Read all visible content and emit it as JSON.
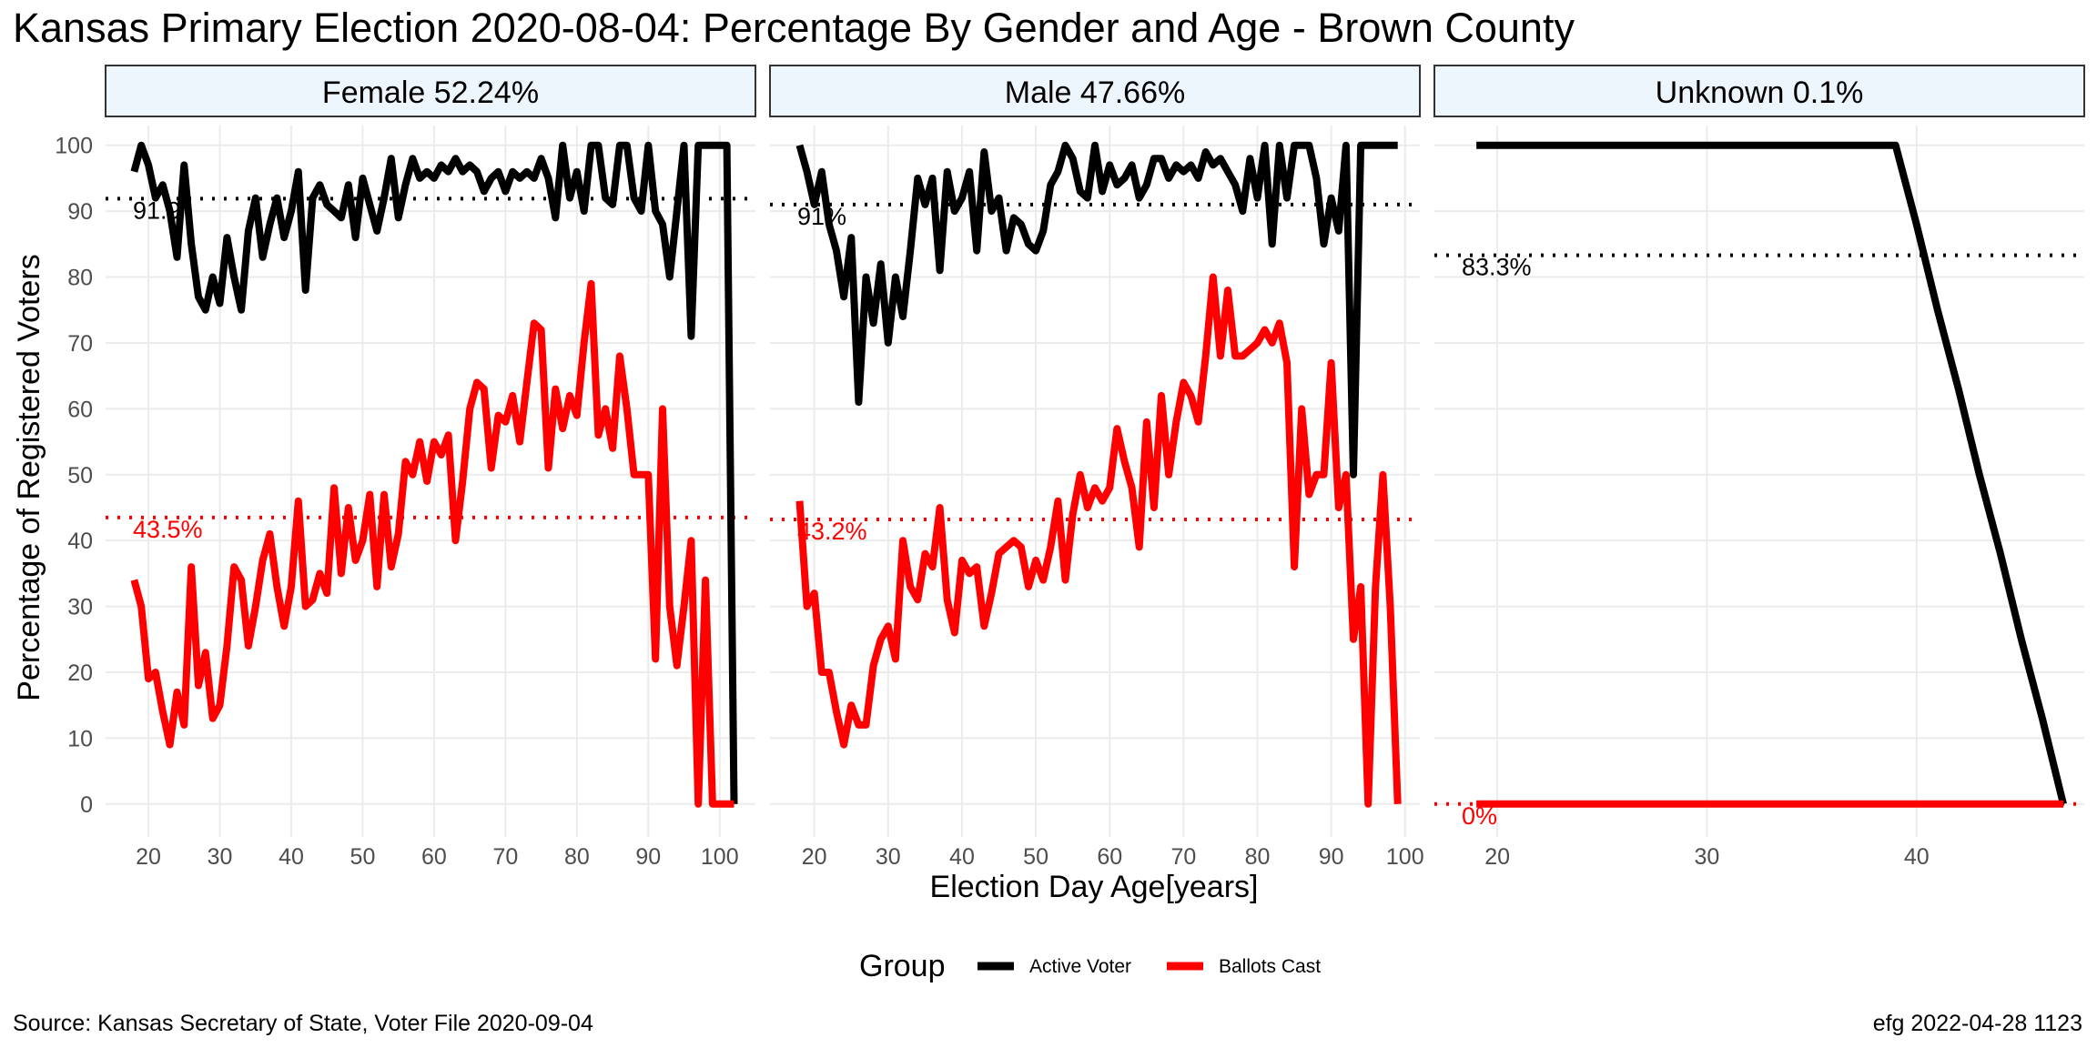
{
  "title": "Kansas Primary Election 2020-08-04:  Percentage By Gender and Age - Brown County",
  "ylabel": "Percentage of Registered Voters",
  "xlabel": "Election Day Age[years]",
  "caption_left": "Source:  Kansas Secretary of State, Voter File  2020-09-04",
  "caption_right": "efg 2022-04-28 1123",
  "legend": {
    "title": "Group",
    "items": [
      {
        "label": "Active Voter",
        "color": "#000000"
      },
      {
        "label": "Ballots Cast",
        "color": "#ff0000"
      }
    ]
  },
  "colors": {
    "active": "#000000",
    "ballots": "#ff0000",
    "strip_fill": "#eef6fd",
    "grid": "#ebebeb"
  },
  "chart_data": [
    {
      "type": "line",
      "facet": "Female 52.24%",
      "xlim": [
        14,
        105
      ],
      "ylim": [
        -5,
        103
      ],
      "x_ticks": [
        20,
        30,
        40,
        50,
        60,
        70,
        80,
        90,
        100
      ],
      "y_ticks": [
        0,
        10,
        20,
        30,
        40,
        50,
        60,
        70,
        80,
        90,
        100
      ],
      "series": [
        {
          "name": "Active Voter",
          "color": "#000000",
          "x": [
            18,
            19,
            20,
            21,
            22,
            23,
            24,
            25,
            26,
            27,
            28,
            29,
            30,
            31,
            32,
            33,
            34,
            35,
            36,
            37,
            38,
            39,
            40,
            41,
            42,
            43,
            44,
            45,
            46,
            47,
            48,
            49,
            50,
            51,
            52,
            53,
            54,
            55,
            56,
            57,
            58,
            59,
            60,
            61,
            62,
            63,
            64,
            65,
            66,
            67,
            68,
            69,
            70,
            71,
            72,
            73,
            74,
            75,
            76,
            77,
            78,
            79,
            80,
            81,
            82,
            83,
            84,
            85,
            86,
            87,
            88,
            89,
            90,
            91,
            92,
            93,
            94,
            95,
            96,
            97,
            98,
            99,
            100,
            101,
            102
          ],
          "y": [
            96,
            100,
            97,
            92,
            94,
            90,
            83,
            97,
            85,
            77,
            75,
            80,
            76,
            86,
            80,
            75,
            87,
            92,
            83,
            88,
            92,
            86,
            90,
            96,
            78,
            92,
            94,
            91,
            90,
            89,
            94,
            86,
            95,
            91,
            87,
            92,
            98,
            89,
            94,
            98,
            95,
            96,
            95,
            97,
            96,
            98,
            96,
            97,
            96,
            93,
            95,
            96,
            93,
            96,
            95,
            96,
            95,
            98,
            95,
            89,
            100,
            92,
            96,
            90,
            100,
            100,
            92,
            91,
            100,
            100,
            92,
            90,
            100,
            90,
            88,
            80,
            90,
            100,
            71,
            100,
            100,
            100,
            100,
            100,
            0
          ]
        },
        {
          "name": "Ballots Cast",
          "color": "#ff0000",
          "x": [
            18,
            19,
            20,
            21,
            22,
            23,
            24,
            25,
            26,
            27,
            28,
            29,
            30,
            31,
            32,
            33,
            34,
            35,
            36,
            37,
            38,
            39,
            40,
            41,
            42,
            43,
            44,
            45,
            46,
            47,
            48,
            49,
            50,
            51,
            52,
            53,
            54,
            55,
            56,
            57,
            58,
            59,
            60,
            61,
            62,
            63,
            64,
            65,
            66,
            67,
            68,
            69,
            70,
            71,
            72,
            73,
            74,
            75,
            76,
            77,
            78,
            79,
            80,
            81,
            82,
            83,
            84,
            85,
            86,
            87,
            88,
            89,
            90,
            91,
            92,
            93,
            94,
            95,
            96,
            97,
            98,
            99,
            100,
            101,
            102
          ],
          "y": [
            34,
            30,
            19,
            20,
            14,
            9,
            17,
            12,
            36,
            18,
            23,
            13,
            15,
            24,
            36,
            34,
            24,
            30,
            37,
            41,
            33,
            27,
            33,
            46,
            30,
            31,
            35,
            32,
            48,
            35,
            45,
            37,
            40,
            47,
            33,
            47,
            36,
            41,
            52,
            50,
            55,
            49,
            55,
            53,
            56,
            40,
            49,
            60,
            64,
            63,
            51,
            59,
            58,
            62,
            55,
            64,
            73,
            72,
            51,
            63,
            57,
            62,
            59,
            70,
            79,
            56,
            60,
            54,
            68,
            60,
            50,
            50,
            50,
            22,
            60,
            30,
            21,
            30,
            40,
            0,
            34,
            0,
            0,
            0,
            0
          ]
        }
      ],
      "reference": {
        "active": 91.9,
        "active_label": "91.9",
        "ballots": 43.5,
        "ballots_label": "43.5%"
      }
    },
    {
      "type": "line",
      "facet": "Male 47.66%",
      "xlim": [
        14,
        102
      ],
      "ylim": [
        -5,
        103
      ],
      "x_ticks": [
        20,
        30,
        40,
        50,
        60,
        70,
        80,
        90,
        100
      ],
      "y_ticks": [
        0,
        10,
        20,
        30,
        40,
        50,
        60,
        70,
        80,
        90,
        100
      ],
      "series": [
        {
          "name": "Active Voter",
          "color": "#000000",
          "x": [
            18,
            19,
            20,
            21,
            22,
            23,
            24,
            25,
            26,
            27,
            28,
            29,
            30,
            31,
            32,
            33,
            34,
            35,
            36,
            37,
            38,
            39,
            40,
            41,
            42,
            43,
            44,
            45,
            46,
            47,
            48,
            49,
            50,
            51,
            52,
            53,
            54,
            55,
            56,
            57,
            58,
            59,
            60,
            61,
            62,
            63,
            64,
            65,
            66,
            67,
            68,
            69,
            70,
            71,
            72,
            73,
            74,
            75,
            76,
            77,
            78,
            79,
            80,
            81,
            82,
            83,
            84,
            85,
            86,
            87,
            88,
            89,
            90,
            91,
            92,
            93,
            94,
            95,
            96,
            97,
            98,
            99
          ],
          "y": [
            100,
            96,
            91,
            96,
            88,
            84,
            77,
            86,
            61,
            80,
            73,
            82,
            70,
            80,
            74,
            84,
            95,
            91,
            95,
            81,
            96,
            90,
            92,
            96,
            84,
            99,
            90,
            92,
            84,
            89,
            88,
            85,
            84,
            87,
            94,
            96,
            100,
            98,
            93,
            92,
            100,
            93,
            97,
            94,
            95,
            97,
            92,
            94,
            98,
            98,
            95,
            97,
            96,
            97,
            95,
            99,
            97,
            98,
            96,
            94,
            90,
            98,
            92,
            100,
            85,
            100,
            92,
            100,
            100,
            100,
            95,
            85,
            92,
            87,
            100,
            50,
            100,
            100,
            100,
            100,
            100,
            100
          ]
        },
        {
          "name": "Ballots Cast",
          "color": "#ff0000",
          "x": [
            18,
            19,
            20,
            21,
            22,
            23,
            24,
            25,
            26,
            27,
            28,
            29,
            30,
            31,
            32,
            33,
            34,
            35,
            36,
            37,
            38,
            39,
            40,
            41,
            42,
            43,
            44,
            45,
            46,
            47,
            48,
            49,
            50,
            51,
            52,
            53,
            54,
            55,
            56,
            57,
            58,
            59,
            60,
            61,
            62,
            63,
            64,
            65,
            66,
            67,
            68,
            69,
            70,
            71,
            72,
            73,
            74,
            75,
            76,
            77,
            78,
            79,
            80,
            81,
            82,
            83,
            84,
            85,
            86,
            87,
            88,
            89,
            90,
            91,
            92,
            93,
            94,
            95,
            96,
            97,
            98,
            99
          ],
          "y": [
            46,
            30,
            32,
            20,
            20,
            14,
            9,
            15,
            12,
            12,
            21,
            25,
            27,
            22,
            40,
            33,
            31,
            38,
            36,
            45,
            31,
            26,
            37,
            35,
            36,
            27,
            32,
            38,
            39,
            40,
            39,
            33,
            37,
            34,
            39,
            46,
            34,
            44,
            50,
            45,
            48,
            46,
            48,
            57,
            52,
            48,
            39,
            58,
            45,
            62,
            50,
            58,
            64,
            62,
            58,
            68,
            80,
            68,
            78,
            68,
            68,
            69,
            70,
            72,
            70,
            73,
            67,
            36,
            60,
            47,
            50,
            50,
            67,
            45,
            50,
            25,
            33,
            0,
            33,
            50,
            30,
            0
          ]
        }
      ],
      "reference": {
        "active": 91.0,
        "active_label": "91%",
        "ballots": 43.2,
        "ballots_label": "43.2%"
      }
    },
    {
      "type": "line",
      "facet": "Unknown 0.1%",
      "xlim": [
        17,
        48
      ],
      "ylim": [
        -5,
        103
      ],
      "x_ticks": [
        20,
        30,
        40
      ],
      "y_ticks": [
        0,
        10,
        20,
        30,
        40,
        50,
        60,
        70,
        80,
        90,
        100
      ],
      "series": [
        {
          "name": "Active Voter",
          "color": "#000000",
          "x": [
            19,
            20,
            21,
            22,
            23,
            24,
            25,
            26,
            27,
            28,
            29,
            30,
            31,
            32,
            33,
            34,
            35,
            36,
            37,
            38,
            39,
            40,
            41,
            42,
            43,
            44,
            45,
            46,
            47
          ],
          "y": [
            100,
            100,
            100,
            100,
            100,
            100,
            100,
            100,
            100,
            100,
            100,
            100,
            100,
            100,
            100,
            100,
            100,
            100,
            100,
            100,
            100,
            88,
            75,
            63,
            50,
            38,
            25,
            13,
            0
          ]
        },
        {
          "name": "Ballots Cast",
          "color": "#ff0000",
          "x": [
            19,
            20,
            21,
            22,
            23,
            24,
            25,
            26,
            27,
            28,
            29,
            30,
            31,
            32,
            33,
            34,
            35,
            36,
            37,
            38,
            39,
            40,
            41,
            42,
            43,
            44,
            45,
            46,
            47
          ],
          "y": [
            0,
            0,
            0,
            0,
            0,
            0,
            0,
            0,
            0,
            0,
            0,
            0,
            0,
            0,
            0,
            0,
            0,
            0,
            0,
            0,
            0,
            0,
            0,
            0,
            0,
            0,
            0,
            0,
            0
          ]
        }
      ],
      "reference": {
        "active": 83.3,
        "active_label": "83.3%",
        "ballots": 0,
        "ballots_label": "0%"
      }
    }
  ]
}
